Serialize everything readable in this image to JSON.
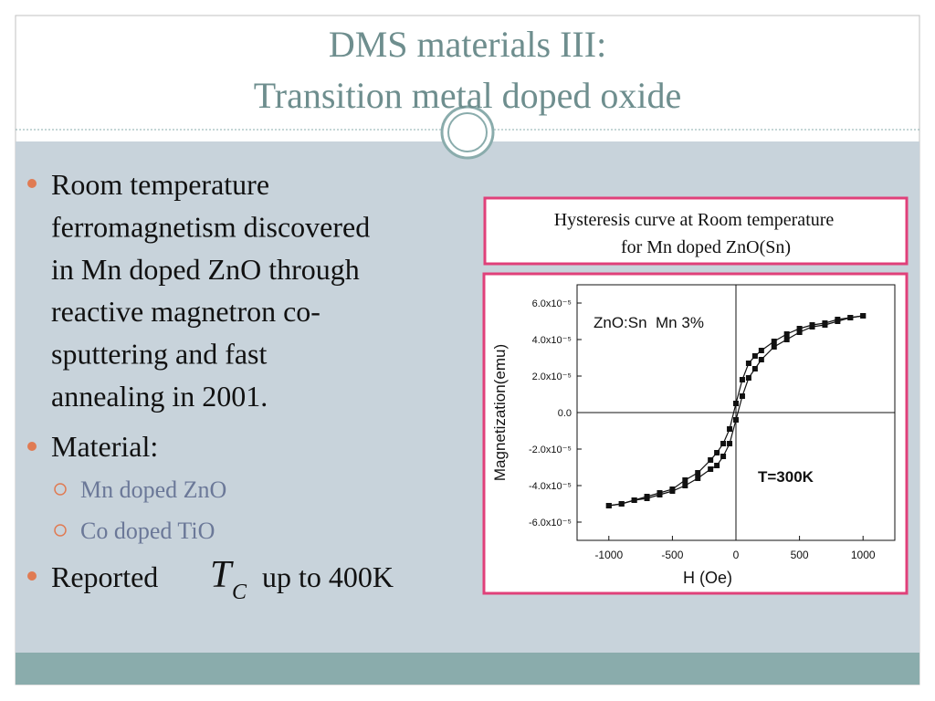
{
  "header": {
    "title_lines": [
      "DMS materials III:",
      "Transition metal doped oxide"
    ]
  },
  "bullets": [
    {
      "lines": [
        "Room temperature",
        "ferromagnetism discovered",
        "in Mn doped ZnO through",
        "reactive magnetron co-",
        "sputtering and fast",
        "annealing in 2001."
      ]
    },
    {
      "lines": [
        "Material:"
      ],
      "sub_bullets": [
        "Mn doped ZnO",
        "Co doped TiO"
      ]
    },
    {
      "before": "Reported",
      "symbol": "T",
      "subscript": "C",
      "after": "up to 400K"
    }
  ],
  "figure": {
    "caption_lines": [
      "Hysteresis curve at Room temperature",
      "for Mn doped ZnO(Sn)"
    ],
    "chart_data": {
      "type": "line",
      "annotations": [
        "ZnO:Sn  Mn 3%",
        "T=300K"
      ],
      "x_label": "H (Oe)",
      "y_label": "Magnetization(emu)",
      "xlim": [
        -1250,
        1250
      ],
      "ylim": [
        -7e-05,
        7e-05
      ],
      "xticks": [
        -1000,
        -500,
        0,
        500,
        1000
      ],
      "yticks": [
        {
          "value": 6e-05,
          "label": "6.0x10⁻⁵"
        },
        {
          "value": 4e-05,
          "label": "4.0x10⁻⁵"
        },
        {
          "value": 2e-05,
          "label": "2.0x10⁻⁵"
        },
        {
          "value": 0,
          "label": "0.0"
        },
        {
          "value": -2e-05,
          "label": "-2.0x10⁻⁵"
        },
        {
          "value": -4e-05,
          "label": "-4.0x10⁻⁵"
        },
        {
          "value": -6e-05,
          "label": "-6.0x10⁻⁵"
        }
      ],
      "x": [
        -1000,
        -900,
        -800,
        -700,
        -600,
        -500,
        -400,
        -300,
        -200,
        -150,
        -100,
        -50,
        0,
        50,
        100,
        150,
        200,
        300,
        400,
        500,
        600,
        700,
        800,
        900,
        1000
      ],
      "series": [
        {
          "color": "#111111",
          "values": [
            -5.1e-05,
            -5e-05,
            -4.8e-05,
            -4.6e-05,
            -4.4e-05,
            -4.2e-05,
            -3.7e-05,
            -3.3e-05,
            -2.6e-05,
            -2.2e-05,
            -1.7e-05,
            -9e-06,
            5e-06,
            1.8e-05,
            2.7e-05,
            3.1e-05,
            3.4e-05,
            3.9e-05,
            4.3e-05,
            4.6e-05,
            4.8e-05,
            4.9e-05,
            5.1e-05,
            5.2e-05,
            5.3e-05
          ]
        },
        {
          "color": "#111111",
          "values": [
            -5.1e-05,
            -5e-05,
            -4.8e-05,
            -4.7e-05,
            -4.5e-05,
            -4.3e-05,
            -4e-05,
            -3.6e-05,
            -3.1e-05,
            -2.9e-05,
            -2.4e-05,
            -1.7e-05,
            -4e-06,
            9e-06,
            1.9e-05,
            2.4e-05,
            2.9e-05,
            3.6e-05,
            4e-05,
            4.4e-05,
            4.7e-05,
            4.8e-05,
            5e-05,
            5.2e-05,
            5.3e-05
          ]
        }
      ]
    }
  }
}
